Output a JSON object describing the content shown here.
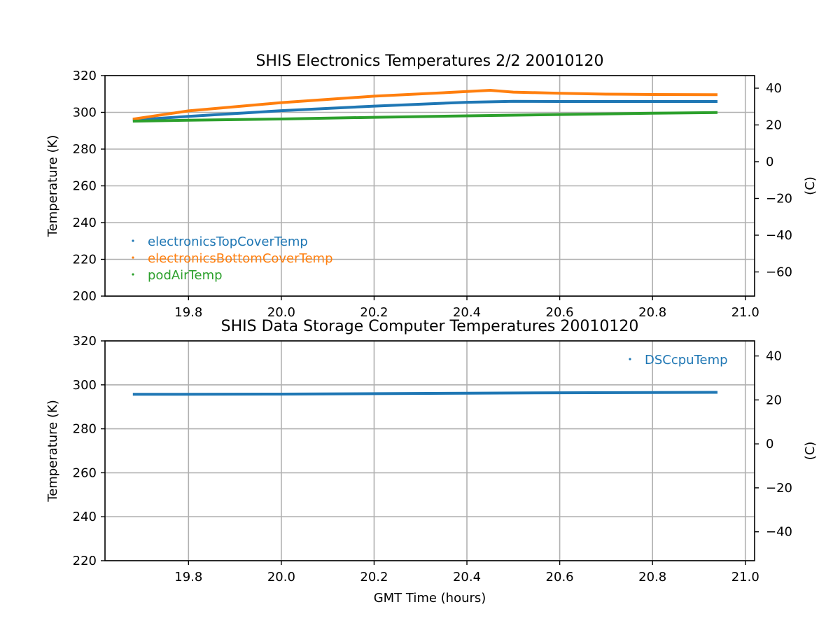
{
  "colors": {
    "c0": "#1f77b4",
    "c1": "#ff7f0e",
    "c2": "#2ca02c",
    "grid": "#b0b0b0"
  },
  "chart_data": [
    {
      "type": "scatter",
      "title": "SHIS Electronics Temperatures 2/2 20010120",
      "ylabel": "Temperature (K)",
      "ylabel_right": "(C)",
      "xlim": [
        19.62,
        21.02
      ],
      "ylim": [
        200,
        320
      ],
      "x_ticks": [
        19.8,
        20.0,
        20.2,
        20.4,
        20.6,
        20.8,
        21.0
      ],
      "x_tick_labels": [
        "19.8",
        "20.0",
        "20.2",
        "20.4",
        "20.6",
        "20.8",
        "21.0"
      ],
      "y_ticks": [
        200,
        220,
        240,
        260,
        280,
        300,
        320
      ],
      "y_tick_labels": [
        "200",
        "220",
        "240",
        "260",
        "280",
        "300",
        "320"
      ],
      "y2_ticks": [
        -60,
        -40,
        -20,
        0,
        20,
        40
      ],
      "y2_tick_labels": [
        "−60",
        "−40",
        "−20",
        "0",
        "20",
        "40"
      ],
      "grid": true,
      "legend": "center-left",
      "series": [
        {
          "name": "electronicsTopCoverTemp",
          "color": "#1f77b4",
          "points": [
            [
              19.68,
              295.8
            ],
            [
              19.8,
              297.8
            ],
            [
              20.0,
              300.9
            ],
            [
              20.2,
              303.4
            ],
            [
              20.4,
              305.5
            ],
            [
              20.5,
              306.0
            ],
            [
              20.6,
              305.9
            ],
            [
              20.8,
              305.9
            ],
            [
              20.94,
              305.9
            ]
          ]
        },
        {
          "name": "electronicsBottomCoverTemp",
          "color": "#ff7f0e",
          "points": [
            [
              19.68,
              296.3
            ],
            [
              19.8,
              300.8
            ],
            [
              20.0,
              305.3
            ],
            [
              20.2,
              308.8
            ],
            [
              20.4,
              311.3
            ],
            [
              20.45,
              312.0
            ],
            [
              20.5,
              311.0
            ],
            [
              20.6,
              310.4
            ],
            [
              20.7,
              309.9
            ],
            [
              20.8,
              309.7
            ],
            [
              20.94,
              309.6
            ]
          ]
        },
        {
          "name": "podAirTemp",
          "color": "#2ca02c",
          "points": [
            [
              19.68,
              295.2
            ],
            [
              19.8,
              295.7
            ],
            [
              20.0,
              296.4
            ],
            [
              20.2,
              297.3
            ],
            [
              20.4,
              298.1
            ],
            [
              20.6,
              298.8
            ],
            [
              20.8,
              299.5
            ],
            [
              20.94,
              299.9
            ]
          ]
        }
      ]
    },
    {
      "type": "scatter",
      "title": "SHIS Data Storage Computer Temperatures 20010120",
      "xlabel": "GMT Time (hours)",
      "ylabel": "Temperature (K)",
      "ylabel_right": "(C)",
      "xlim": [
        19.62,
        21.02
      ],
      "ylim": [
        220,
        320
      ],
      "x_ticks": [
        19.8,
        20.0,
        20.2,
        20.4,
        20.6,
        20.8,
        21.0
      ],
      "x_tick_labels": [
        "19.8",
        "20.0",
        "20.2",
        "20.4",
        "20.6",
        "20.8",
        "21.0"
      ],
      "y_ticks": [
        220,
        240,
        260,
        280,
        300,
        320
      ],
      "y_tick_labels": [
        "220",
        "240",
        "260",
        "280",
        "300",
        "320"
      ],
      "y2_ticks": [
        -40,
        -20,
        0,
        20,
        40
      ],
      "y2_tick_labels": [
        "−40",
        "−20",
        "0",
        "20",
        "40"
      ],
      "grid": true,
      "legend": "top-right",
      "series": [
        {
          "name": "DSCcpuTemp",
          "color": "#1f77b4",
          "points": [
            [
              19.68,
              295.7
            ],
            [
              20.0,
              295.8
            ],
            [
              20.2,
              296.0
            ],
            [
              20.4,
              296.2
            ],
            [
              20.6,
              296.4
            ],
            [
              20.8,
              296.5
            ],
            [
              20.94,
              296.6
            ]
          ]
        }
      ]
    }
  ]
}
